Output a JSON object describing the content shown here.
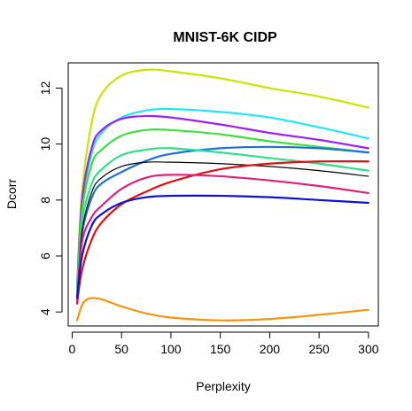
{
  "chart_data": {
    "type": "line",
    "title": "MNIST-6K CIDP",
    "xlabel": "Perplexity",
    "ylabel": "Dcorr",
    "xlim": [
      -4,
      310
    ],
    "ylim": [
      3.5,
      12.9
    ],
    "xticks": [
      0,
      50,
      100,
      150,
      200,
      250,
      300
    ],
    "yticks": [
      4,
      6,
      8,
      10,
      12
    ],
    "grid": false,
    "legend": "none",
    "series": [
      {
        "color": "#C8E600",
        "x": [
          5,
          10,
          20,
          30,
          50,
          75,
          100,
          150,
          200,
          250,
          300
        ],
        "y": [
          5.0,
          8.3,
          10.8,
          11.8,
          12.45,
          12.65,
          12.6,
          12.35,
          12.0,
          11.7,
          11.3
        ]
      },
      {
        "color": "#22E8F2",
        "x": [
          5,
          10,
          20,
          30,
          50,
          75,
          100,
          150,
          200,
          250,
          300
        ],
        "y": [
          4.9,
          7.8,
          9.7,
          10.4,
          10.95,
          11.2,
          11.25,
          11.15,
          10.95,
          10.6,
          10.2
        ]
      },
      {
        "color": "#A020F0",
        "x": [
          5,
          10,
          20,
          30,
          50,
          75,
          100,
          150,
          200,
          250,
          300
        ],
        "y": [
          4.8,
          8.0,
          9.9,
          10.5,
          10.9,
          11.0,
          10.95,
          10.7,
          10.4,
          10.15,
          9.85
        ]
      },
      {
        "color": "#3CE03C",
        "x": [
          5,
          10,
          20,
          30,
          50,
          75,
          100,
          150,
          200,
          250,
          300
        ],
        "y": [
          4.7,
          7.6,
          9.3,
          9.8,
          10.3,
          10.5,
          10.5,
          10.35,
          10.1,
          9.9,
          9.7
        ]
      },
      {
        "color": "#1E6FE0",
        "x": [
          5,
          10,
          20,
          30,
          50,
          75,
          100,
          150,
          200,
          250,
          300
        ],
        "y": [
          4.6,
          6.8,
          8.1,
          8.6,
          9.0,
          9.4,
          9.65,
          9.85,
          9.9,
          9.85,
          9.7
        ]
      },
      {
        "color": "#2EE08A",
        "x": [
          5,
          10,
          20,
          30,
          50,
          75,
          100,
          150,
          200,
          250,
          300
        ],
        "y": [
          4.6,
          7.2,
          8.6,
          9.1,
          9.6,
          9.8,
          9.85,
          9.7,
          9.5,
          9.3,
          9.05
        ]
      },
      {
        "color": "#000000",
        "x": [
          5,
          10,
          20,
          30,
          50,
          75,
          100,
          150,
          200,
          250,
          300
        ],
        "y": [
          4.5,
          6.9,
          8.3,
          8.8,
          9.2,
          9.35,
          9.35,
          9.3,
          9.2,
          9.05,
          8.85
        ]
      },
      {
        "color": "#E01010",
        "x": [
          5,
          10,
          20,
          30,
          50,
          75,
          100,
          150,
          200,
          250,
          300
        ],
        "y": [
          4.3,
          5.5,
          6.6,
          7.2,
          7.85,
          8.3,
          8.65,
          9.1,
          9.3,
          9.38,
          9.38
        ]
      },
      {
        "color": "#E0207A",
        "x": [
          5,
          10,
          20,
          30,
          50,
          75,
          100,
          150,
          200,
          250,
          300
        ],
        "y": [
          4.4,
          6.5,
          7.4,
          7.8,
          8.4,
          8.8,
          8.9,
          8.85,
          8.7,
          8.5,
          8.25
        ]
      },
      {
        "color": "#1010D0",
        "x": [
          5,
          10,
          20,
          30,
          50,
          75,
          100,
          150,
          200,
          250,
          300
        ],
        "y": [
          4.5,
          6.0,
          7.1,
          7.5,
          7.9,
          8.1,
          8.15,
          8.15,
          8.1,
          8.0,
          7.9
        ]
      },
      {
        "color": "#F5950F",
        "x": [
          5,
          10,
          15,
          20,
          30,
          50,
          75,
          100,
          150,
          200,
          250,
          300
        ],
        "y": [
          3.7,
          4.25,
          4.45,
          4.5,
          4.45,
          4.2,
          3.95,
          3.8,
          3.7,
          3.75,
          3.9,
          4.08
        ]
      }
    ]
  }
}
